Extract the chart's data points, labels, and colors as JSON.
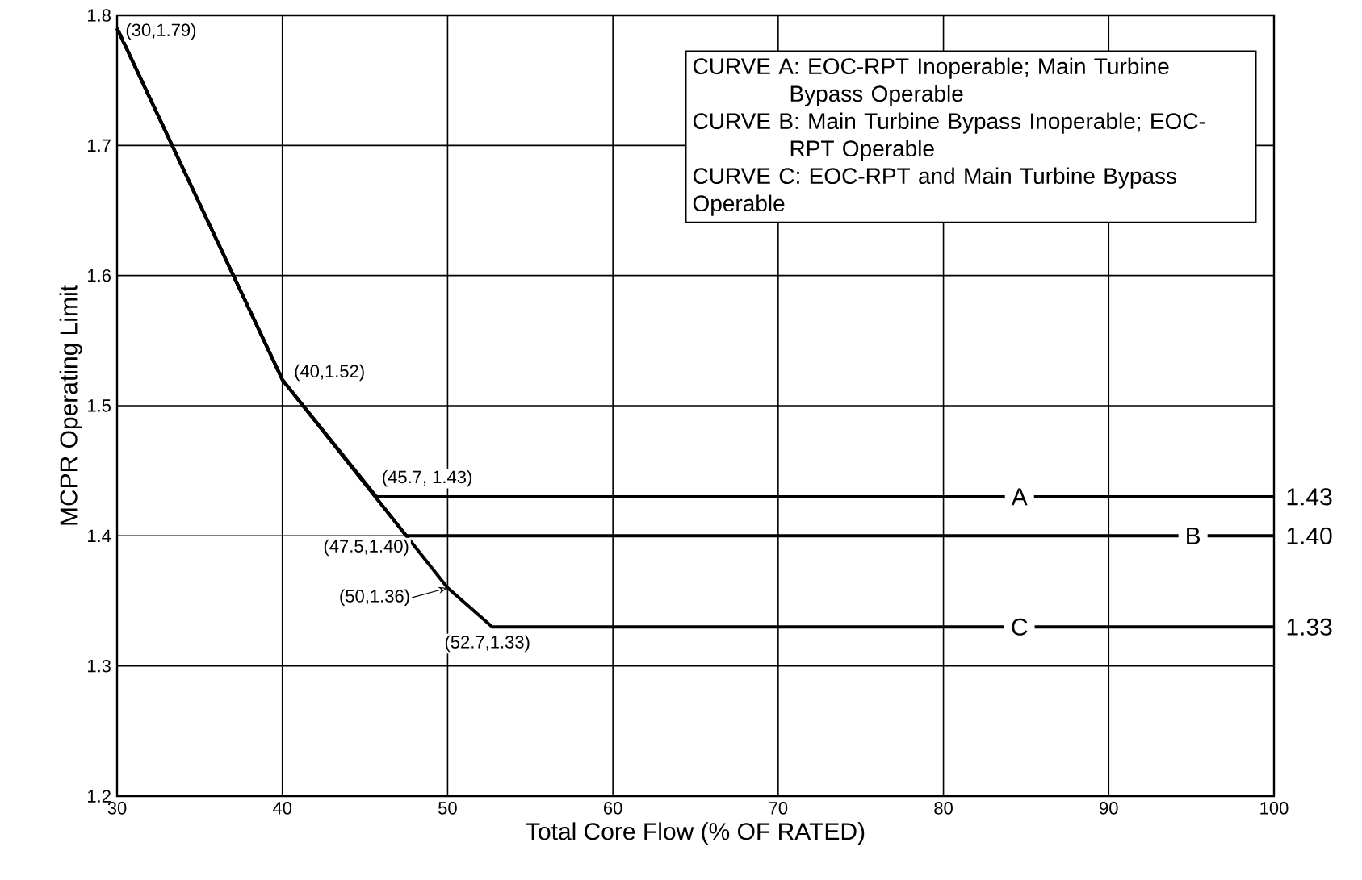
{
  "chart_data": {
    "type": "line",
    "xlabel": "Total Core Flow (% OF RATED)",
    "ylabel": "MCPR Operating Limit",
    "xlim": [
      30,
      100
    ],
    "ylim": [
      1.2,
      1.8
    ],
    "xticks": [
      30,
      40,
      50,
      60,
      70,
      80,
      90,
      100
    ],
    "yticks": [
      1.2,
      1.3,
      1.4,
      1.5,
      1.6,
      1.7,
      1.8
    ],
    "grid": true,
    "series": [
      {
        "name": "A",
        "color": "#000000",
        "x": [
          30,
          40,
          45.7,
          100
        ],
        "values": [
          1.79,
          1.52,
          1.43,
          1.43
        ]
      },
      {
        "name": "B",
        "color": "#000000",
        "x": [
          30,
          40,
          47.5,
          100
        ],
        "values": [
          1.79,
          1.52,
          1.4,
          1.4
        ]
      },
      {
        "name": "C",
        "color": "#000000",
        "x": [
          30,
          40,
          50,
          52.7,
          100
        ],
        "values": [
          1.79,
          1.52,
          1.36,
          1.33,
          1.33
        ]
      }
    ],
    "annotations": [
      "CURVE A: EOC-RPT Inoperable; Main Turbine Bypass Operable",
      "CURVE B: Main Turbine Bypass Inoperable; EOC-RPT Operable",
      "CURVE C: EOC-RPT and Main Turbine Bypass Operable",
      {
        "text": "(30,1.79)",
        "x": 30,
        "y": 1.79
      },
      {
        "text": "(40,1.52)",
        "x": 40,
        "y": 1.52
      },
      {
        "text": "(45.7, 1.43)",
        "x": 45.7,
        "y": 1.43
      },
      {
        "text": "(47.5,1.40)",
        "x": 47.5,
        "y": 1.4
      },
      {
        "text": "(50,1.36)",
        "x": 50,
        "y": 1.36
      },
      {
        "text": "(52.7,1.33)",
        "x": 52.7,
        "y": 1.33
      },
      {
        "text": "1.43",
        "x": 100,
        "y": 1.43
      },
      {
        "text": "1.40",
        "x": 100,
        "y": 1.4
      },
      {
        "text": "1.33",
        "x": 100,
        "y": 1.33
      }
    ]
  }
}
